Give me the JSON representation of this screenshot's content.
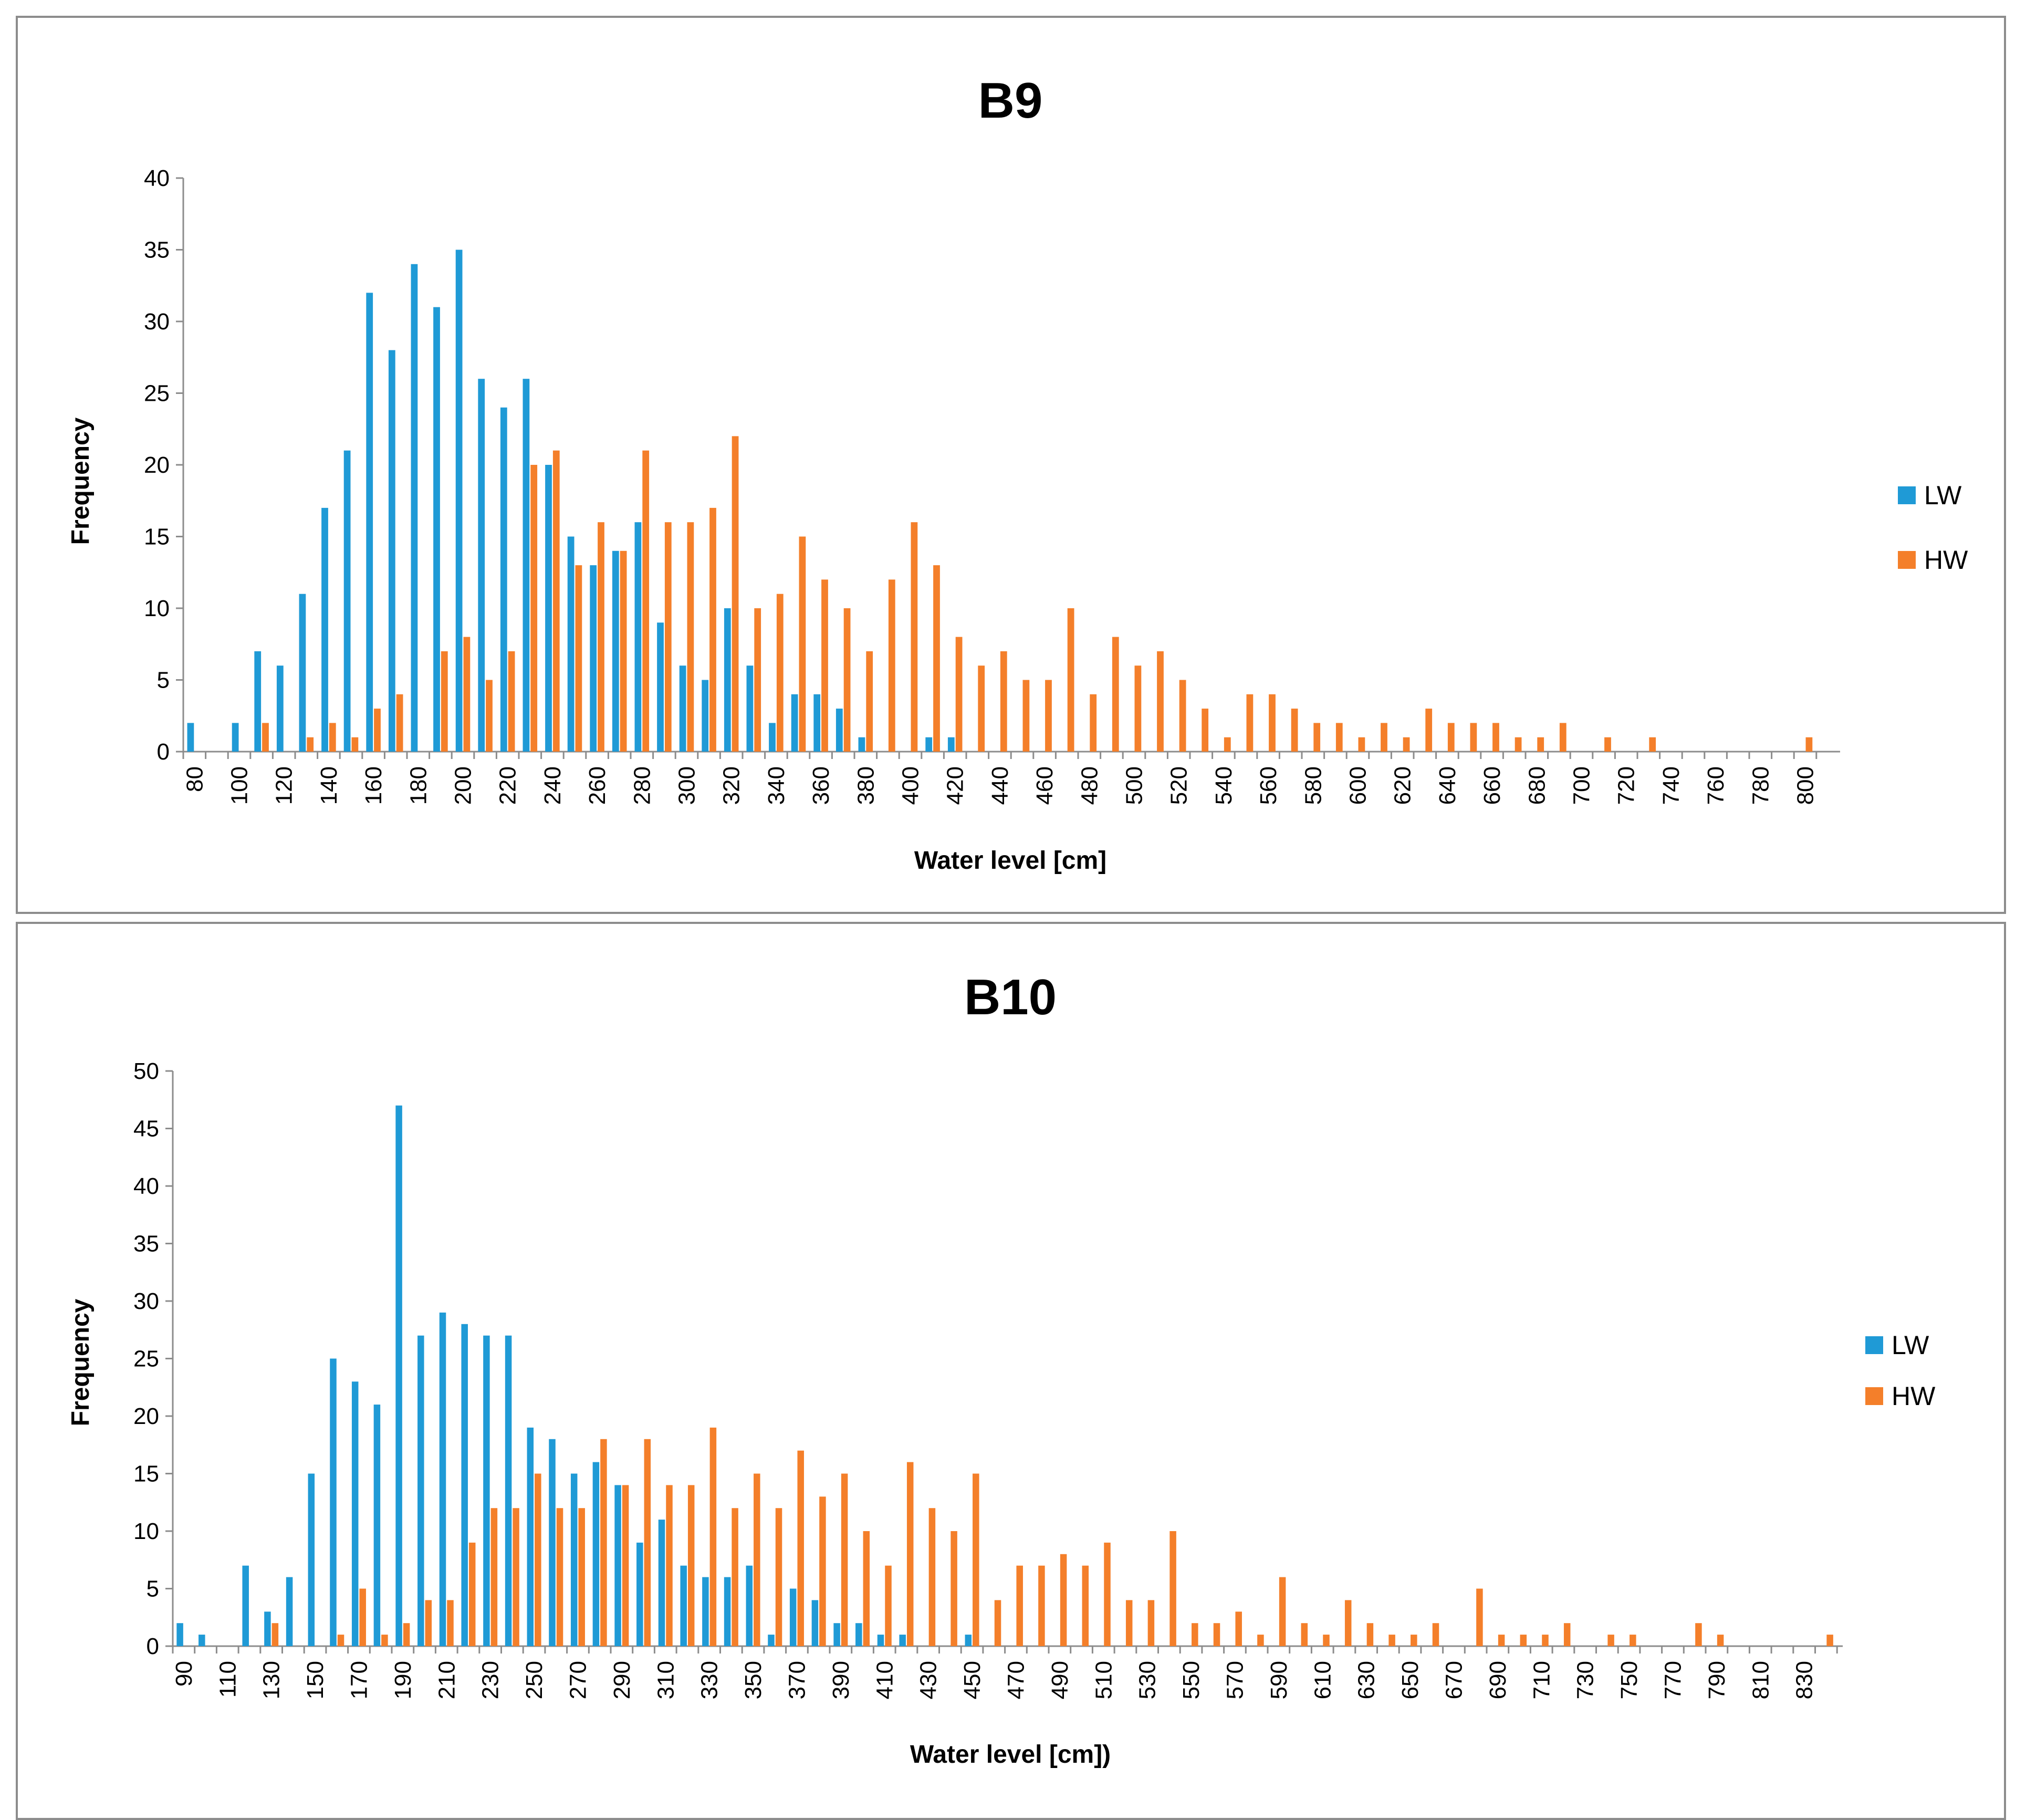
{
  "colors": {
    "LW": "#1f9ad6",
    "HW": "#f47f2a"
  },
  "chart_data": [
    {
      "type": "bar",
      "title": "B9",
      "xlabel": "Water level [cm]",
      "ylabel": "Frequency",
      "ylim": [
        0,
        40
      ],
      "yticks": [
        0,
        5,
        10,
        15,
        20,
        25,
        30,
        35,
        40
      ],
      "categories": [
        80,
        90,
        100,
        110,
        120,
        130,
        140,
        150,
        160,
        170,
        180,
        190,
        200,
        210,
        220,
        230,
        240,
        250,
        260,
        270,
        280,
        290,
        300,
        310,
        320,
        330,
        340,
        350,
        360,
        370,
        380,
        390,
        400,
        410,
        420,
        430,
        440,
        450,
        460,
        470,
        480,
        490,
        500,
        510,
        520,
        530,
        540,
        550,
        560,
        570,
        580,
        590,
        600,
        610,
        620,
        630,
        640,
        650,
        660,
        670,
        680,
        690,
        700,
        710,
        720,
        730,
        740,
        750,
        760,
        770,
        780,
        790,
        800
      ],
      "tick_labels": [
        "80",
        "100",
        "120",
        "140",
        "160",
        "180",
        "200",
        "220",
        "240",
        "260",
        "280",
        "300",
        "320",
        "340",
        "360",
        "380",
        "400",
        "420",
        "440",
        "460",
        "480",
        "500",
        "520",
        "540",
        "560",
        "580",
        "600",
        "620",
        "640",
        "660",
        "680",
        "700",
        "720",
        "740",
        "760",
        "780",
        "800"
      ],
      "legend": "right",
      "series": [
        {
          "name": "LW",
          "values": [
            2,
            0,
            2,
            7,
            6,
            11,
            17,
            21,
            32,
            28,
            34,
            31,
            35,
            26,
            24,
            26,
            20,
            15,
            13,
            14,
            16,
            9,
            6,
            5,
            10,
            6,
            2,
            4,
            4,
            3,
            1,
            0,
            0,
            1,
            1,
            0,
            0,
            0,
            0,
            0,
            0,
            0,
            0,
            0,
            0,
            0,
            0,
            0,
            0,
            0,
            0,
            0,
            0,
            0,
            0,
            0,
            0,
            0,
            0,
            0,
            0,
            0,
            0,
            0,
            0,
            0,
            0,
            0,
            0,
            0,
            0,
            0,
            0
          ]
        },
        {
          "name": "HW",
          "values": [
            0,
            0,
            0,
            2,
            0,
            1,
            2,
            1,
            3,
            4,
            0,
            7,
            8,
            5,
            7,
            20,
            21,
            13,
            16,
            14,
            21,
            16,
            16,
            17,
            22,
            10,
            11,
            15,
            12,
            10,
            7,
            12,
            16,
            13,
            8,
            6,
            7,
            5,
            5,
            10,
            4,
            8,
            6,
            7,
            5,
            3,
            1,
            4,
            4,
            3,
            2,
            2,
            1,
            2,
            1,
            3,
            2,
            2,
            2,
            1,
            1,
            2,
            0,
            1,
            0,
            1,
            0,
            0,
            0,
            0,
            0,
            0,
            1
          ]
        }
      ]
    },
    {
      "type": "bar",
      "title": "B10",
      "xlabel": "Water level [cm])",
      "ylabel": "Frequency",
      "ylim": [
        0,
        50
      ],
      "yticks": [
        0,
        5,
        10,
        15,
        20,
        25,
        30,
        35,
        40,
        45,
        50
      ],
      "categories": [
        90,
        100,
        110,
        120,
        130,
        140,
        150,
        160,
        170,
        180,
        190,
        200,
        210,
        220,
        230,
        240,
        250,
        260,
        270,
        280,
        290,
        300,
        310,
        320,
        330,
        340,
        350,
        360,
        370,
        380,
        390,
        400,
        410,
        420,
        430,
        440,
        450,
        460,
        470,
        480,
        490,
        500,
        510,
        520,
        530,
        540,
        550,
        560,
        570,
        580,
        590,
        600,
        610,
        620,
        630,
        640,
        650,
        660,
        670,
        680,
        690,
        700,
        710,
        720,
        730,
        740,
        750,
        760,
        770,
        780,
        790,
        800,
        810,
        820,
        830,
        840
      ],
      "tick_labels": [
        "90",
        "110",
        "130",
        "150",
        "170",
        "190",
        "210",
        "230",
        "250",
        "270",
        "290",
        "310",
        "330",
        "350",
        "370",
        "390",
        "410",
        "430",
        "450",
        "470",
        "490",
        "510",
        "530",
        "550",
        "570",
        "590",
        "610",
        "630",
        "650",
        "670",
        "690",
        "710",
        "730",
        "750",
        "770",
        "790",
        "810",
        "830"
      ],
      "legend": "right",
      "series": [
        {
          "name": "LW",
          "values": [
            2,
            1,
            0,
            7,
            3,
            6,
            15,
            25,
            23,
            21,
            47,
            27,
            29,
            28,
            27,
            27,
            19,
            18,
            15,
            16,
            14,
            9,
            11,
            7,
            6,
            6,
            7,
            1,
            5,
            4,
            2,
            2,
            1,
            1,
            0,
            0,
            1,
            0,
            0,
            0,
            0,
            0,
            0,
            0,
            0,
            0,
            0,
            0,
            0,
            0,
            0,
            0,
            0,
            0,
            0,
            0,
            0,
            0,
            0,
            0,
            0,
            0,
            0,
            0,
            0,
            0,
            0,
            0,
            0,
            0,
            0,
            0,
            0,
            0,
            0,
            0
          ]
        },
        {
          "name": "HW",
          "values": [
            0,
            0,
            0,
            0,
            2,
            0,
            0,
            1,
            5,
            1,
            2,
            4,
            4,
            9,
            12,
            12,
            15,
            12,
            12,
            18,
            14,
            18,
            14,
            14,
            19,
            12,
            15,
            12,
            17,
            13,
            15,
            10,
            7,
            16,
            12,
            10,
            15,
            4,
            7,
            7,
            8,
            7,
            9,
            4,
            4,
            10,
            2,
            2,
            3,
            1,
            6,
            2,
            1,
            4,
            2,
            1,
            1,
            2,
            0,
            5,
            1,
            1,
            1,
            2,
            0,
            1,
            1,
            0,
            0,
            2,
            1,
            0,
            0,
            0,
            0,
            1
          ]
        }
      ]
    }
  ]
}
